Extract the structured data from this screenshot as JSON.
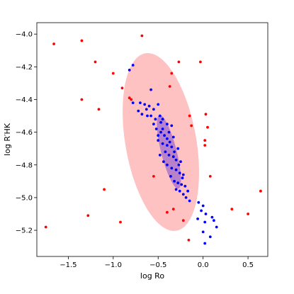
{
  "chart_data": {
    "type": "scatter",
    "xlabel": "log Ro",
    "ylabel": "log R′HK",
    "xlim": [
      -1.85,
      0.72
    ],
    "ylim": [
      -5.36,
      -3.93
    ],
    "xticks": [
      -1.5,
      -1.0,
      -0.5,
      0.0,
      0.5
    ],
    "xtick_labels": [
      "−1.5",
      "−1.0",
      "−0.5",
      "0.0",
      "0.5"
    ],
    "yticks": [
      -4.0,
      -4.2,
      -4.4,
      -4.6,
      -4.8,
      -5.0,
      -5.2
    ],
    "ytick_labels": [
      "−4.0",
      "−4.2",
      "−4.4",
      "−4.6",
      "−4.8",
      "−5.0",
      "−5.2"
    ],
    "grid": false,
    "ellipses": [
      {
        "cx": -0.47,
        "cy": -4.66,
        "rx": 0.58,
        "ry": 0.375,
        "angle_deg": -63,
        "color": "#ff9999",
        "opacity": 0.6
      },
      {
        "cx": -0.38,
        "cy": -4.72,
        "rx": 0.25,
        "ry": 0.08,
        "angle_deg": -63,
        "color": "#9966cc",
        "opacity": 0.7
      }
    ],
    "series": [
      {
        "color": "#ff0000",
        "points": [
          [
            -1.66,
            -4.06
          ],
          [
            -1.35,
            -4.04
          ],
          [
            -1.2,
            -4.17
          ],
          [
            -1.0,
            -4.24
          ],
          [
            -0.9,
            -4.33
          ],
          [
            -0.68,
            -4.01
          ],
          [
            -0.35,
            -4.24
          ],
          [
            -0.27,
            -4.17
          ],
          [
            -0.03,
            -4.17
          ],
          [
            -1.35,
            -4.4
          ],
          [
            -1.16,
            -4.46
          ],
          [
            -0.82,
            -4.39
          ],
          [
            -0.37,
            -4.32
          ],
          [
            -0.15,
            -4.5
          ],
          [
            0.03,
            -4.49
          ],
          [
            -0.13,
            -4.56
          ],
          [
            0.02,
            -4.65
          ],
          [
            0.05,
            -4.57
          ],
          [
            0.02,
            -4.68
          ],
          [
            -0.55,
            -4.87
          ],
          [
            0.08,
            -4.87
          ],
          [
            -1.1,
            -4.95
          ],
          [
            -0.4,
            -5.09
          ],
          [
            -0.33,
            -5.07
          ],
          [
            -1.28,
            -5.11
          ],
          [
            -0.92,
            -5.15
          ],
          [
            -0.22,
            -5.14
          ],
          [
            0.32,
            -5.07
          ],
          [
            0.5,
            -5.1
          ],
          [
            0.64,
            -4.96
          ],
          [
            -1.75,
            -5.18
          ],
          [
            -0.16,
            -5.26
          ],
          [
            -0.8,
            -4.4
          ]
        ]
      },
      {
        "color": "#0000ff",
        "points": [
          [
            -0.78,
            -4.19
          ],
          [
            -0.82,
            -4.22
          ],
          [
            -0.58,
            -4.34
          ],
          [
            -0.78,
            -4.42
          ],
          [
            -0.7,
            -4.42
          ],
          [
            -0.65,
            -4.43
          ],
          [
            -0.6,
            -4.44
          ],
          [
            -0.55,
            -4.46
          ],
          [
            -0.72,
            -4.47
          ],
          [
            -0.68,
            -4.49
          ],
          [
            -0.62,
            -4.5
          ],
          [
            -0.5,
            -4.43
          ],
          [
            -0.48,
            -4.5
          ],
          [
            -0.45,
            -4.52
          ],
          [
            -0.4,
            -4.55
          ],
          [
            -0.35,
            -4.56
          ],
          [
            -0.55,
            -4.55
          ],
          [
            -0.52,
            -4.58
          ],
          [
            -0.47,
            -4.6
          ],
          [
            -0.43,
            -4.62
          ],
          [
            -0.38,
            -4.6
          ],
          [
            -0.33,
            -4.63
          ],
          [
            -0.5,
            -4.65
          ],
          [
            -0.45,
            -4.67
          ],
          [
            -0.4,
            -4.68
          ],
          [
            -0.35,
            -4.69
          ],
          [
            -0.28,
            -4.7
          ],
          [
            -0.42,
            -4.72
          ],
          [
            -0.38,
            -4.74
          ],
          [
            -0.33,
            -4.75
          ],
          [
            -0.3,
            -4.77
          ],
          [
            -0.25,
            -4.78
          ],
          [
            -0.48,
            -4.74
          ],
          [
            -0.44,
            -4.78
          ],
          [
            -0.4,
            -4.8
          ],
          [
            -0.35,
            -4.82
          ],
          [
            -0.3,
            -4.83
          ],
          [
            -0.26,
            -4.85
          ],
          [
            -0.22,
            -4.86
          ],
          [
            -0.36,
            -4.87
          ],
          [
            -0.32,
            -4.9
          ],
          [
            -0.28,
            -4.91
          ],
          [
            -0.24,
            -4.92
          ],
          [
            -0.2,
            -4.93
          ],
          [
            -0.3,
            -4.95
          ],
          [
            -0.26,
            -4.96
          ],
          [
            -0.22,
            -4.98
          ],
          [
            -0.17,
            -4.96
          ],
          [
            -0.19,
            -5.0
          ],
          [
            -0.15,
            -5.02
          ],
          [
            -0.05,
            -5.03
          ],
          [
            0.0,
            -5.05
          ],
          [
            -0.02,
            -5.08
          ],
          [
            0.03,
            -5.1
          ],
          [
            -0.06,
            -5.13
          ],
          [
            0.02,
            -5.15
          ],
          [
            0.1,
            -5.12
          ],
          [
            0.12,
            -5.14
          ],
          [
            0.15,
            -5.18
          ],
          [
            0.0,
            -5.21
          ],
          [
            0.08,
            -5.24
          ],
          [
            0.02,
            -5.28
          ],
          [
            -0.45,
            -4.58
          ],
          [
            -0.4,
            -4.64
          ],
          [
            -0.5,
            -4.62
          ],
          [
            -0.58,
            -4.5
          ],
          [
            -0.63,
            -4.46
          ],
          [
            -0.53,
            -4.52
          ],
          [
            -0.47,
            -4.54
          ],
          [
            -0.37,
            -4.66
          ],
          [
            -0.32,
            -4.72
          ],
          [
            -0.27,
            -4.8
          ],
          [
            -0.23,
            -4.88
          ]
        ]
      }
    ]
  }
}
